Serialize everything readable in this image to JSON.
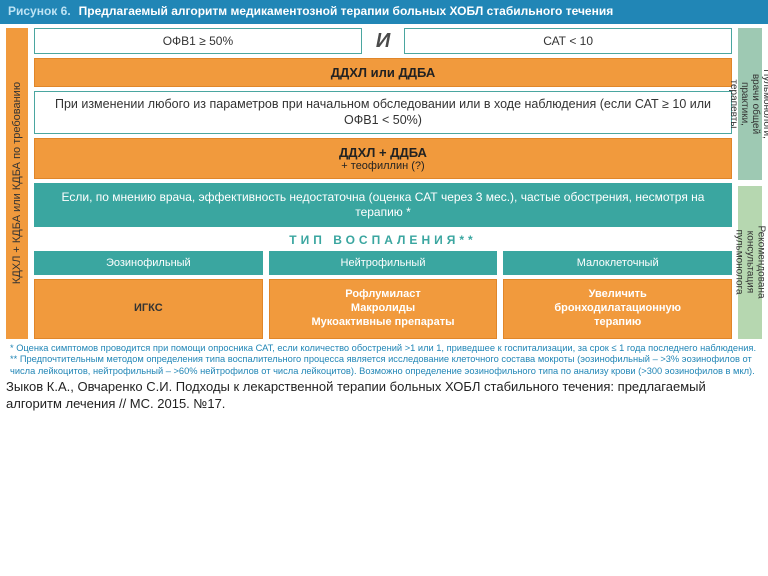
{
  "header": {
    "fignum": "Рисунок 6.",
    "title": "Предлагаемый алгоритм медикаментозной терапии больных ХОБЛ стабильного течения"
  },
  "left_sidebar": "КДХЛ + КДБА или КДБА по требованию",
  "right_sidebar": {
    "top": "Пульмонологи,\nврачи общей практики, терапевты",
    "bottom": "Рекомендована\nконсультация пульмонолога"
  },
  "conditions": {
    "left": "ОФВ1 ≥ 50%",
    "conj": "И",
    "right": "САТ < 10"
  },
  "step1": "ДДХЛ или ДДБА",
  "change_params": "При изменении любого из параметров при начальном обследовании или в ходе наблюдения (если САТ ≥ 10 или ОФВ1 < 50%)",
  "step2_main": "ДДХЛ + ДДБА",
  "step2_sub": "+ теофиллин (?)",
  "efficacy": "Если, по мнению врача, эффективность недостаточна (оценка САТ через 3 мес.), частые обострения, несмотря на терапию *",
  "type_label": "ТИП  ВОСПАЛЕНИЯ**",
  "types": {
    "a": "Эозинофильный",
    "b": "Нейтрофильный",
    "c": "Малоклеточный"
  },
  "therapy": {
    "a": "ИГКС",
    "b": "Рофлумиласт\nМакролиды\nМукоактивные препараты",
    "c": "Увеличить\nбронходилатационную\nтерапию"
  },
  "footnote1": "* Оценка симптомов проводится при помощи опросника САТ, если количество обострений >1 или 1, приведшее к госпитализации, за срок ≤ 1 года последнего наблюдения.",
  "footnote2": "** Предпочтительным методом определения типа воспалительного процесса является исследование клеточного состава мокроты (эозинофильный – >3% эозинофилов от числа лейкоцитов, нейтрофильный – >60% нейтрофилов от числа лейкоцитов). Возможно определение эозинофильного типа по анализу крови (>300 эозинофилов в мкл).",
  "citation": "Зыков К.А., Овчаренко С.И. Подходы к лекарственной терапии больных ХОБЛ стабильного течения: предлагаемый алгоритм лечения // МС. 2015. №17.",
  "colors": {
    "header": "#2186b6",
    "orange": "#f19a3d",
    "teal": "#3aa6a0",
    "green1": "#9ec9b3",
    "green2": "#b6d7b0"
  }
}
